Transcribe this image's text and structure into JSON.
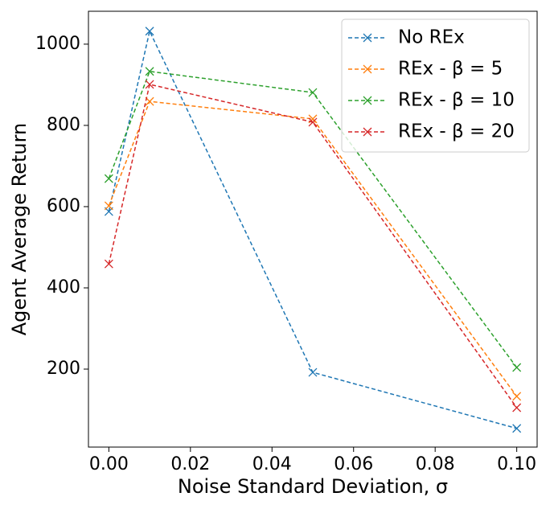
{
  "chart_data": {
    "type": "line",
    "xlabel": "Noise Standard Deviation, σ",
    "ylabel": "Agent Average Return",
    "x": [
      0,
      0.01,
      0.05,
      0.1
    ],
    "series": [
      {
        "name": "No REx",
        "color": "#1f77b4",
        "values": [
          588,
          1032,
          192,
          54
        ]
      },
      {
        "name": "REx - β = 5",
        "color": "#ff7f0e",
        "values": [
          602,
          859,
          816,
          133
        ]
      },
      {
        "name": "REx - β = 10",
        "color": "#2ca02c",
        "values": [
          669,
          933,
          881,
          204
        ]
      },
      {
        "name": "REx - β = 20",
        "color": "#d62728",
        "values": [
          459,
          901,
          808,
          105
        ]
      }
    ],
    "xlim": [
      -0.005,
      0.105
    ],
    "ylim": [
      8,
      1081
    ],
    "xticks": [
      {
        "value": 0,
        "label": "0.00"
      },
      {
        "value": 0.02,
        "label": "0.02"
      },
      {
        "value": 0.04,
        "label": "0.04"
      },
      {
        "value": 0.06,
        "label": "0.06"
      },
      {
        "value": 0.08,
        "label": "0.08"
      },
      {
        "value": 0.1,
        "label": "0.10"
      }
    ],
    "yticks": [
      200,
      400,
      600,
      800,
      1000
    ],
    "linestyle": "dashed",
    "marker": "x",
    "legend": "upper right"
  }
}
